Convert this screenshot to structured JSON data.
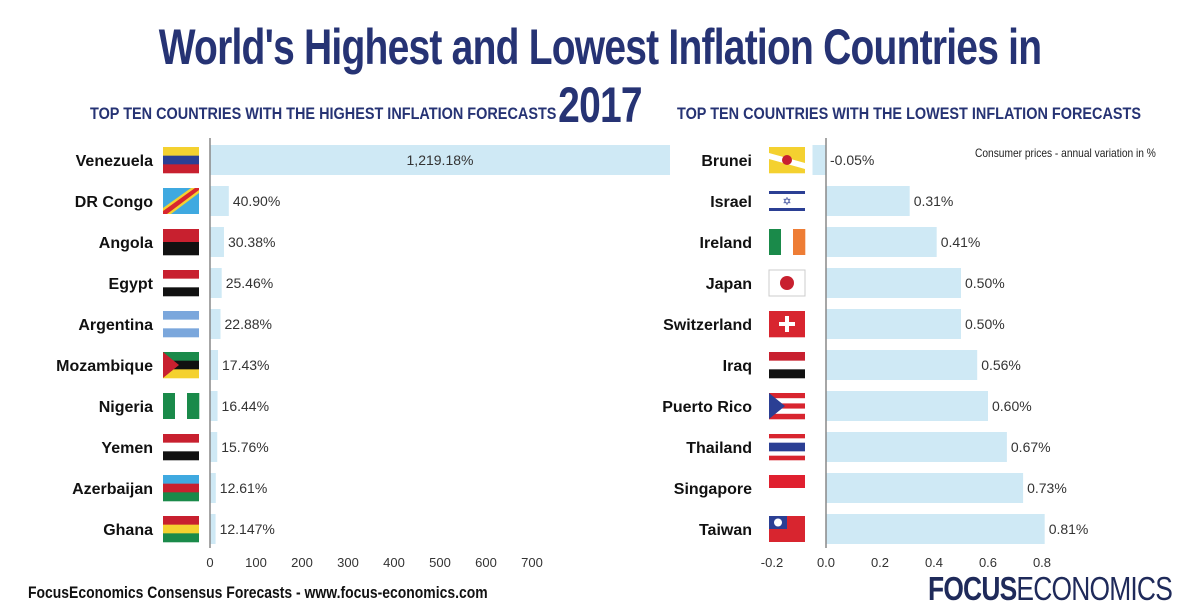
{
  "title": "World's Highest and Lowest Inflation Countries in 2017",
  "footer": "FocusEconomics Consensus Forecasts - www.focus-economics.com",
  "logo": {
    "bold": "FOCUS",
    "light": "ECONOMICS"
  },
  "colors": {
    "title": "#263374",
    "bar": "#cfe9f5",
    "axis": "#888888"
  },
  "chart_data": [
    {
      "type": "bar",
      "orientation": "horizontal",
      "title": "TOP TEN COUNTRIES WITH THE HIGHEST INFLATION FORECASTS",
      "categories": [
        "Venezuela",
        "DR Congo",
        "Angola",
        "Egypt",
        "Argentina",
        "Mozambique",
        "Nigeria",
        "Yemen",
        "Azerbaijan",
        "Ghana"
      ],
      "values": [
        1219.18,
        40.9,
        30.38,
        25.46,
        22.88,
        17.43,
        16.44,
        15.76,
        12.61,
        12.147
      ],
      "data_labels": [
        "1,219.18%",
        "40.90%",
        "30.38%",
        "25.46%",
        "22.88%",
        "17.43%",
        "16.44%",
        "15.76%",
        "12.61%",
        "12.147%"
      ],
      "xlim": [
        0,
        1000
      ],
      "ticks": [
        "0",
        "100",
        "200",
        "300",
        "400",
        "500",
        "600",
        "700"
      ],
      "grid": false
    },
    {
      "type": "bar",
      "orientation": "horizontal",
      "title": "TOP TEN COUNTRIES WITH THE LOWEST INFLATION FORECASTS",
      "note": "Consumer prices - annual variation in %",
      "categories": [
        "Brunei",
        "Israel",
        "Ireland",
        "Japan",
        "Switzerland",
        "Iraq",
        "Puerto Rico",
        "Thailand",
        "Singapore",
        "Taiwan"
      ],
      "values": [
        -0.05,
        0.31,
        0.41,
        0.5,
        0.5,
        0.56,
        0.6,
        0.67,
        0.73,
        0.81
      ],
      "data_labels": [
        "-0.05%",
        "0.31%",
        "0.41%",
        "0.50%",
        "0.50%",
        "0.56%",
        "0.60%",
        "0.67%",
        "0.73%",
        "0.81%"
      ],
      "xlim": [
        -0.2,
        0.8
      ],
      "ticks": [
        "-0.2",
        "0.0",
        "0.2",
        "0.4",
        "0.6",
        "0.8"
      ],
      "grid": false
    }
  ]
}
